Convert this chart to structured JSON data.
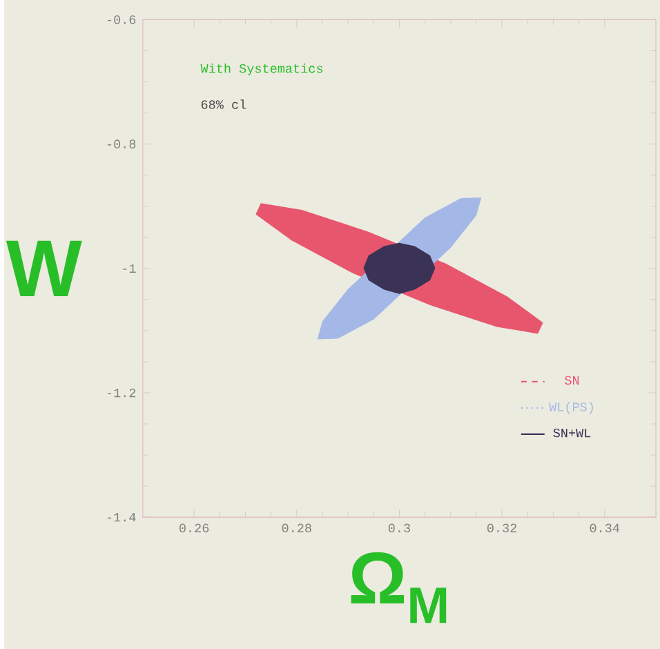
{
  "chart_data": {
    "type": "area",
    "xlabel": "Ω$_{M}$",
    "ylabel": "W",
    "annotations": [
      "With Systematics",
      "68% cl"
    ],
    "xlim": [
      0.25,
      0.35
    ],
    "ylim": [
      -1.4,
      -0.6
    ],
    "xticks": [
      0.26,
      0.28,
      0.3,
      0.32,
      0.34
    ],
    "yticks": [
      -1.4,
      -1.2,
      -1,
      -0.8,
      -0.6
    ],
    "legend": "bottom right",
    "series": [
      {
        "name": "SN",
        "color": "#e8566e",
        "line_style": "dashed",
        "x": [
          0.327,
          0.319,
          0.306,
          0.291,
          0.279,
          0.272,
          0.273,
          0.281,
          0.294,
          0.309,
          0.321,
          0.328
        ],
        "values": [
          -1.105,
          -1.094,
          -1.059,
          -1.008,
          -0.955,
          -0.913,
          -0.895,
          -0.906,
          -0.941,
          -0.992,
          -1.045,
          -1.087
        ]
      },
      {
        "name": "WL(PS)",
        "color": "#a4b8e8",
        "line_style": "dotted",
        "x": [
          0.316,
          0.315,
          0.31,
          0.295,
          0.288,
          0.284,
          0.285,
          0.29,
          0.305,
          0.312
        ],
        "values": [
          -0.886,
          -0.915,
          -0.967,
          -1.082,
          -1.113,
          -1.114,
          -1.085,
          -1.033,
          -0.918,
          -0.887
        ]
      },
      {
        "name": "SN+WL",
        "color": "#3a3356",
        "line_style": "solid",
        "x": [
          0.307,
          0.306,
          0.303,
          0.3,
          0.297,
          0.294,
          0.293,
          0.294,
          0.297,
          0.3,
          0.303,
          0.306
        ],
        "values": [
          -0.999,
          -0.979,
          -0.964,
          -0.959,
          -0.964,
          -0.979,
          -0.999,
          -1.019,
          -1.034,
          -1.041,
          -1.034,
          -1.019
        ]
      }
    ]
  }
}
